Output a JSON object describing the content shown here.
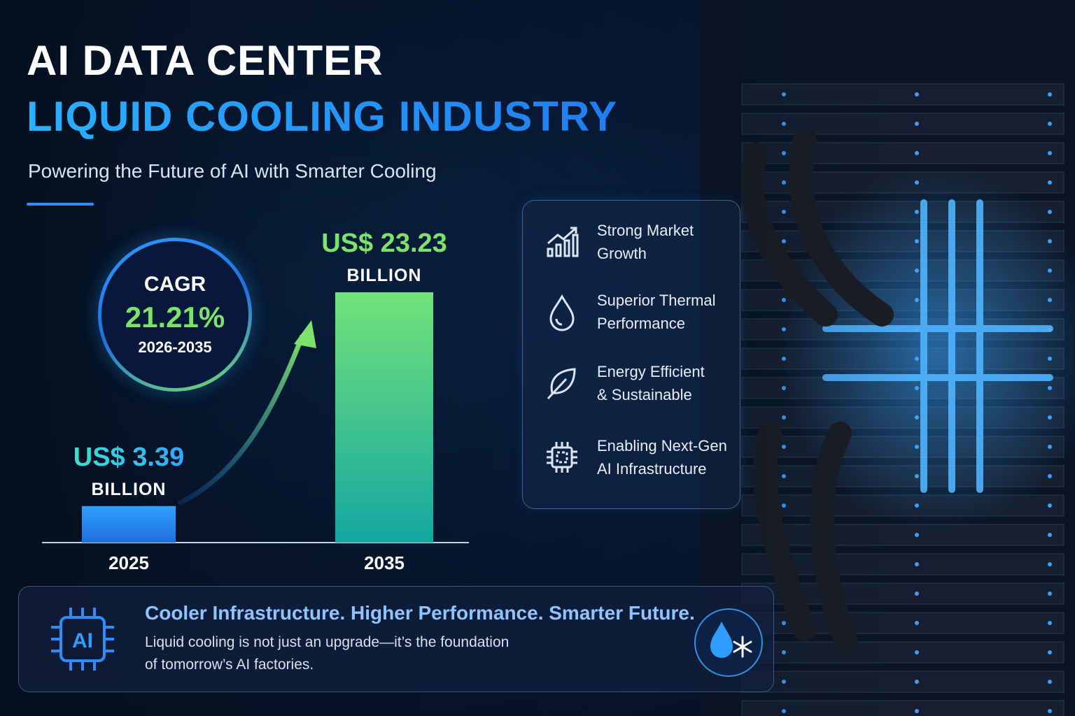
{
  "header": {
    "title_line1": "AI DATA CENTER",
    "title_line2": "LIQUID COOLING INDUSTRY",
    "subtitle": "Powering the Future of AI with Smarter Cooling"
  },
  "cagr": {
    "label": "CAGR",
    "value": "21.21%",
    "period": "2026-2035"
  },
  "chart_data": {
    "type": "bar",
    "categories": [
      "2025",
      "2035"
    ],
    "values": [
      3.39,
      23.23
    ],
    "value_labels": [
      {
        "amount": "US$ 3.39",
        "unit": "BILLION"
      },
      {
        "amount": "US$ 23.23",
        "unit": "BILLION"
      }
    ],
    "title": "",
    "xlabel": "",
    "ylabel": "",
    "grid": false,
    "colors": {
      "bar_2025": "#2f8cff",
      "bar_2035": "#6fe07a",
      "arrow": "#7be36a"
    }
  },
  "features": [
    {
      "icon": "growth-chart-icon",
      "text_line1": "Strong Market",
      "text_line2": "Growth"
    },
    {
      "icon": "water-drop-icon",
      "text_line1": "Superior Thermal",
      "text_line2": "Performance"
    },
    {
      "icon": "leaf-icon",
      "text_line1": "Energy Efficient",
      "text_line2": "& Sustainable"
    },
    {
      "icon": "chip-icon",
      "text_line1": "Enabling Next-Gen",
      "text_line2": "AI Infrastructure"
    }
  ],
  "bottom": {
    "chip_label": "AI",
    "headline": "Cooler Infrastructure. Higher Performance. Smarter Future.",
    "body_line1": "Liquid cooling is not just an upgrade—it’s the foundation",
    "body_line2": "of tomorrow’s AI factories."
  },
  "colors": {
    "accent_blue": "#2f8cff",
    "accent_green": "#7be36a",
    "background": "#071a38"
  }
}
